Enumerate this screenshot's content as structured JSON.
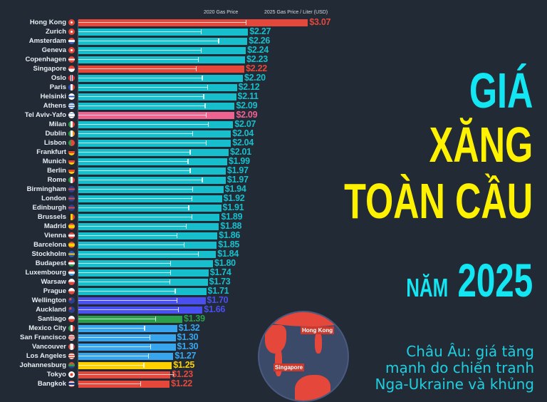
{
  "title": {
    "line1": "GIÁ",
    "line2": "XĂNG",
    "line3": "TOÀN CẦU",
    "line4_small": "NĂM",
    "line4_big": "2025"
  },
  "subtitle": {
    "line1": "Châu Âu: giá tăng",
    "line2": "mạnh do chiến tranh",
    "line3": "Nga-Ukraine và khủng"
  },
  "globe": {
    "label_hk": "Hong Kong",
    "label_sg": "Singapore"
  },
  "colors": {
    "background": "#222a36",
    "teal": "#17bfcc",
    "red": "#e5483a",
    "pink": "#f0628f",
    "blue_nz": "#4a4ff0",
    "green": "#2aa04a",
    "blue_na": "#37a6ee",
    "yellow": "#ffd000",
    "title_cyan": "#12e6f2",
    "title_yellow": "#fff200"
  },
  "chart_data": {
    "type": "bar",
    "orientation": "horizontal",
    "title": "GIÁ XĂNG TOÀN CẦU NĂM 2025",
    "xlabel": "Gas Price / Liter (USD)",
    "legend": [
      "2020 Gas Price",
      "2025 Gas Price / Liter (USD)"
    ],
    "legend_2020": "2020 Gas Price",
    "legend_2025": "2025 Gas Price / Liter (USD)",
    "categories": [
      "Hong Kong",
      "Zurich",
      "Amsterdam",
      "Geneva",
      "Copenhagen",
      "Singapore",
      "Oslo",
      "Paris",
      "Helsinki",
      "Athens",
      "Tel Aviv-Yafo",
      "Milan",
      "Dublin",
      "Lisbon",
      "Frankfurt",
      "Munich",
      "Berlin",
      "Rome",
      "Birmingham",
      "London",
      "Edinburgh",
      "Brussels",
      "Madrid",
      "Vienna",
      "Barcelona",
      "Stockholm",
      "Budapest",
      "Luxembourg",
      "Warsaw",
      "Prague",
      "Wellington",
      "Auckland",
      "Santiago",
      "Mexico City",
      "San Francisco",
      "Vancouver",
      "Los Angeles",
      "Johannesburg",
      "Tokyo",
      "Bangkok"
    ],
    "series": [
      {
        "name": "2025 Gas Price / Liter (USD)",
        "values": [
          3.07,
          2.27,
          2.26,
          2.24,
          2.23,
          2.22,
          2.2,
          2.12,
          2.11,
          2.09,
          2.09,
          2.07,
          2.04,
          2.04,
          2.01,
          1.99,
          1.97,
          1.97,
          1.94,
          1.92,
          1.91,
          1.89,
          1.88,
          1.86,
          1.85,
          1.84,
          1.8,
          1.74,
          1.73,
          1.71,
          1.7,
          1.66,
          1.39,
          1.32,
          1.3,
          1.3,
          1.27,
          1.25,
          1.23,
          1.22
        ]
      },
      {
        "name": "2020 Gas Price",
        "values": [
          2.24,
          1.64,
          1.87,
          1.64,
          1.6,
          1.57,
          1.65,
          1.72,
          1.67,
          1.69,
          1.7,
          1.73,
          1.52,
          1.7,
          1.49,
          1.46,
          1.49,
          1.65,
          1.52,
          1.51,
          1.47,
          1.51,
          1.44,
          1.31,
          1.41,
          1.6,
          1.23,
          1.23,
          1.22,
          1.29,
          1.31,
          1.33,
          1.03,
          0.88,
          0.95,
          0.96,
          0.93,
          0.87,
          1.27,
          0.83
        ]
      }
    ],
    "value_labels": [
      "$3.07",
      "$2.27",
      "$2.26",
      "$2.24",
      "$2.23",
      "$2.22",
      "$2.20",
      "$2.12",
      "$2.11",
      "$2.09",
      "$2.09",
      "$2.07",
      "$2.04",
      "$2.04",
      "$2.01",
      "$1.99",
      "$1.97",
      "$1.97",
      "$1.94",
      "$1.92",
      "$1.91",
      "$1.89",
      "$1.88",
      "$1.86",
      "$1.85",
      "$1.84",
      "$1.80",
      "$1.74",
      "$1.73",
      "$1.71",
      "$1.70",
      "$1.66",
      "$1.39",
      "$1.32",
      "$1.30",
      "$1.30",
      "$1.27",
      "$1.25",
      "$1.23",
      "$1.22"
    ],
    "bar_colors": [
      "#e5483a",
      "#17bfcc",
      "#17bfcc",
      "#17bfcc",
      "#17bfcc",
      "#e5483a",
      "#17bfcc",
      "#17bfcc",
      "#17bfcc",
      "#17bfcc",
      "#f0628f",
      "#17bfcc",
      "#17bfcc",
      "#17bfcc",
      "#17bfcc",
      "#17bfcc",
      "#17bfcc",
      "#17bfcc",
      "#17bfcc",
      "#17bfcc",
      "#17bfcc",
      "#17bfcc",
      "#17bfcc",
      "#17bfcc",
      "#17bfcc",
      "#17bfcc",
      "#17bfcc",
      "#17bfcc",
      "#17bfcc",
      "#17bfcc",
      "#4a4ff0",
      "#4a4ff0",
      "#2aa04a",
      "#37a6ee",
      "#37a6ee",
      "#37a6ee",
      "#37a6ee",
      "#ffd000",
      "#e5483a",
      "#e5483a"
    ],
    "flags": [
      "hk",
      "ch",
      "nl",
      "ch",
      "dk",
      "sg",
      "no",
      "fr",
      "fi",
      "gr",
      "il",
      "it",
      "ie",
      "pt",
      "de",
      "de",
      "de",
      "it",
      "gb",
      "gb",
      "gb",
      "be",
      "es",
      "at",
      "es",
      "se",
      "hu",
      "lu",
      "pl",
      "cz",
      "nz",
      "nz",
      "cl",
      "mx",
      "us",
      "ca",
      "us",
      "za",
      "jp",
      "th"
    ],
    "xlim": [
      0,
      3.1
    ],
    "grid": false
  }
}
